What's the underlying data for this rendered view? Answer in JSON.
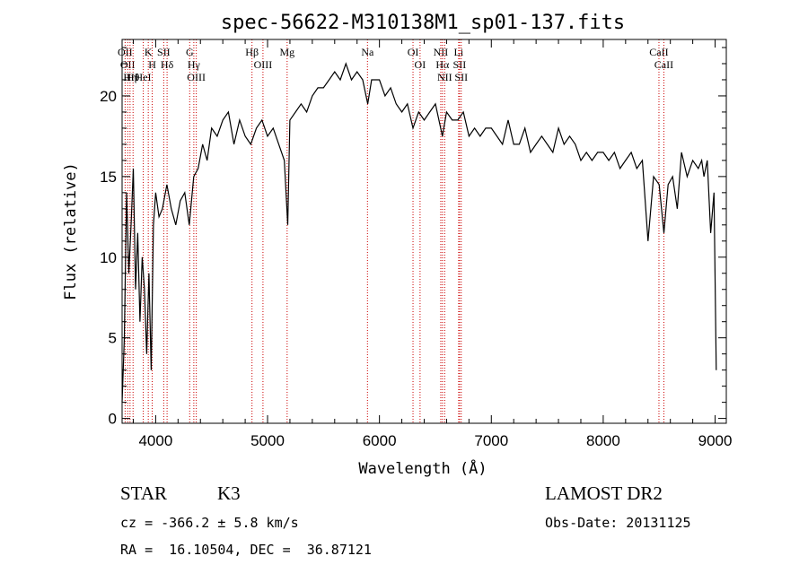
{
  "chart_data": {
    "type": "line",
    "title": "spec-56622-M310138M1_sp01-137.fits",
    "xlabel": "Wavelength (Å)",
    "ylabel": "Flux (relative)",
    "xlim": [
      3700,
      9100
    ],
    "ylim": [
      -0.3,
      23.5
    ],
    "xticks": [
      4000,
      5000,
      6000,
      7000,
      8000,
      9000
    ],
    "yticks": [
      0,
      5,
      10,
      15,
      20
    ],
    "grid": false,
    "series": [
      {
        "x": [
          3700,
          3720,
          3740,
          3760,
          3780,
          3800,
          3820,
          3840,
          3860,
          3880,
          3900,
          3920,
          3940,
          3960,
          3980,
          4000,
          4030,
          4060,
          4100,
          4140,
          4180,
          4220,
          4260,
          4300,
          4340,
          4380,
          4420,
          4460,
          4500,
          4550,
          4600,
          4650,
          4700,
          4750,
          4800,
          4850,
          4900,
          4950,
          5000,
          5050,
          5100,
          5150,
          5180,
          5200,
          5250,
          5300,
          5350,
          5400,
          5450,
          5500,
          5550,
          5600,
          5650,
          5700,
          5750,
          5800,
          5850,
          5895,
          5930,
          6000,
          6050,
          6100,
          6150,
          6200,
          6250,
          6300,
          6350,
          6400,
          6450,
          6500,
          6563,
          6600,
          6650,
          6700,
          6750,
          6800,
          6850,
          6900,
          6950,
          7000,
          7050,
          7100,
          7150,
          7200,
          7250,
          7300,
          7350,
          7400,
          7450,
          7500,
          7550,
          7600,
          7650,
          7700,
          7750,
          7800,
          7850,
          7900,
          7950,
          8000,
          8050,
          8100,
          8150,
          8200,
          8250,
          8300,
          8350,
          8400,
          8450,
          8500,
          8542,
          8580,
          8620,
          8662,
          8700,
          8750,
          8800,
          8850,
          8880,
          8900,
          8930,
          8960,
          8990,
          9010
        ],
        "y": [
          1.0,
          5.0,
          14.0,
          9.0,
          12.0,
          15.5,
          8.0,
          11.5,
          6.0,
          10.0,
          8.0,
          4.0,
          9.0,
          3.0,
          12.0,
          14.0,
          12.5,
          13.0,
          14.5,
          13.0,
          12.0,
          13.5,
          14.0,
          12.0,
          15.0,
          15.5,
          17.0,
          16.0,
          18.0,
          17.5,
          18.5,
          19.0,
          17.0,
          18.5,
          17.5,
          17.0,
          18.0,
          18.5,
          17.5,
          18.0,
          17.0,
          16.0,
          12.0,
          18.5,
          19.0,
          19.5,
          19.0,
          20.0,
          20.5,
          20.5,
          21.0,
          21.5,
          21.0,
          22.0,
          21.0,
          21.5,
          21.0,
          19.5,
          21.0,
          21.0,
          20.0,
          20.5,
          19.5,
          19.0,
          19.5,
          18.0,
          19.0,
          18.5,
          19.0,
          19.5,
          17.5,
          19.0,
          18.5,
          18.5,
          19.0,
          17.5,
          18.0,
          17.5,
          18.0,
          18.0,
          17.5,
          17.0,
          18.5,
          17.0,
          17.0,
          18.0,
          16.5,
          17.0,
          17.5,
          17.0,
          16.5,
          18.0,
          17.0,
          17.5,
          17.0,
          16.0,
          16.5,
          16.0,
          16.5,
          16.5,
          16.0,
          16.5,
          15.5,
          16.0,
          16.5,
          15.5,
          16.0,
          11.0,
          15.0,
          14.5,
          11.5,
          14.5,
          15.0,
          13.0,
          16.5,
          15.0,
          16.0,
          15.5,
          16.0,
          15.0,
          16.0,
          11.5,
          14.0,
          3.0
        ]
      }
    ],
    "line_markers": [
      {
        "wave": 3727,
        "label": "OII"
      },
      {
        "wave": 3750,
        "label": "OII"
      },
      {
        "wave": 3771,
        "label": "Hη"
      },
      {
        "wave": 3798,
        "label": "Hθ"
      },
      {
        "wave": 3889,
        "label": "HeI"
      },
      {
        "wave": 3934,
        "label": "K"
      },
      {
        "wave": 3969,
        "label": "H"
      },
      {
        "wave": 4072,
        "label": "SII"
      },
      {
        "wave": 4102,
        "label": "Hδ"
      },
      {
        "wave": 4304,
        "label": "G"
      },
      {
        "wave": 4341,
        "label": "Hγ"
      },
      {
        "wave": 4363,
        "label": "OIII"
      },
      {
        "wave": 4861,
        "label": "Hβ"
      },
      {
        "wave": 4959,
        "label": "OIII"
      },
      {
        "wave": 5175,
        "label": "Mg"
      },
      {
        "wave": 5893,
        "label": "Na"
      },
      {
        "wave": 6300,
        "label": "OI"
      },
      {
        "wave": 6363,
        "label": "OI"
      },
      {
        "wave": 6548,
        "label": "NII"
      },
      {
        "wave": 6563,
        "label": "Hα"
      },
      {
        "wave": 6583,
        "label": "NII"
      },
      {
        "wave": 6708,
        "label": "Li"
      },
      {
        "wave": 6716,
        "label": "SII"
      },
      {
        "wave": 6731,
        "label": "SII"
      },
      {
        "wave": 8498,
        "label": "CaII"
      },
      {
        "wave": 8542,
        "label": "CaII"
      }
    ]
  },
  "info": {
    "class": "STAR",
    "subclass": "K3",
    "survey": "LAMOST DR2",
    "cz": "cz = -366.2 ± 5.8 km/s",
    "obs_date": "Obs-Date: 20131125",
    "radec": "RA =  16.10504, DEC =  36.87121"
  },
  "colors": {
    "spectrum": "#000000",
    "line_markers": "#cc0000"
  }
}
